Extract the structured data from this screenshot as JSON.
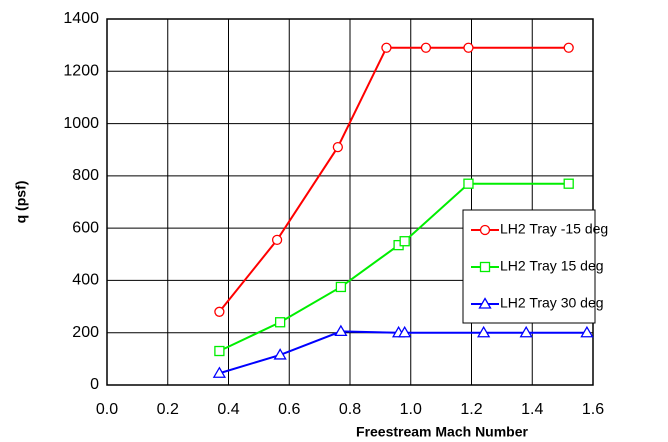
{
  "chart_data": {
    "type": "line",
    "x_label": "Freestream Mach Number",
    "y_label": "q (psf)",
    "xlim": [
      0,
      1.6
    ],
    "ylim": [
      0,
      1400
    ],
    "xticks": [
      {
        "value": 0,
        "label": "0.0"
      },
      {
        "value": 0.2,
        "label": "0.2"
      },
      {
        "value": 0.4,
        "label": "0.4"
      },
      {
        "value": 0.6,
        "label": "0.6"
      },
      {
        "value": 0.8,
        "label": "0.8"
      },
      {
        "value": 1,
        "label": "1.0"
      },
      {
        "value": 1.2,
        "label": "1.2"
      },
      {
        "value": 1.4,
        "label": "1.4"
      },
      {
        "value": 1.6,
        "label": "1.6"
      }
    ],
    "yticks": [
      0,
      200,
      400,
      600,
      800,
      1000,
      1200,
      1400
    ],
    "grid": true,
    "legend": "right",
    "series": [
      {
        "name": "LH2 Tray -15 deg",
        "color": "#ff0000",
        "marker": "circle",
        "x": [
          0.37,
          0.56,
          0.76,
          0.92,
          1.05,
          1.19,
          1.52
        ],
        "values": [
          280,
          555,
          910,
          1290,
          1290,
          1290,
          1290
        ]
      },
      {
        "name": "LH2 Tray 15 deg",
        "color": "#00ee00",
        "marker": "square",
        "x": [
          0.37,
          0.57,
          0.77,
          0.96,
          0.98,
          1.19,
          1.52
        ],
        "values": [
          130,
          240,
          375,
          535,
          550,
          770,
          770
        ]
      },
      {
        "name": "LH2 Tray 30 deg",
        "color": "#0000ff",
        "marker": "triangle",
        "x": [
          0.37,
          0.57,
          0.77,
          0.96,
          0.98,
          1.24,
          1.38,
          1.58
        ],
        "values": [
          45,
          115,
          205,
          200,
          200,
          200,
          200,
          200
        ]
      }
    ]
  }
}
